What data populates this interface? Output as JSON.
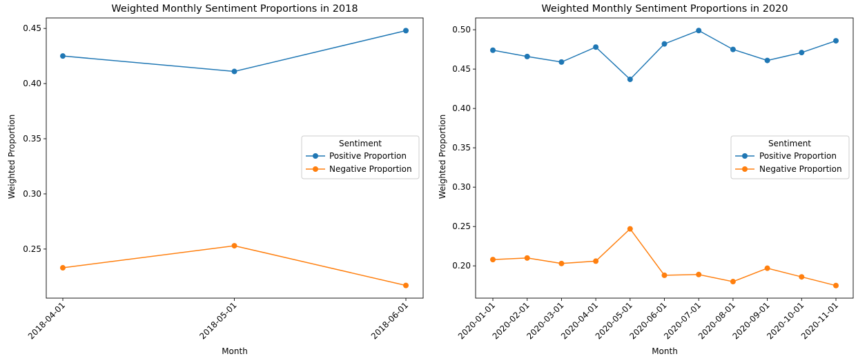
{
  "chart_data": [
    {
      "type": "line",
      "title": "Weighted Monthly Sentiment Proportions in 2018",
      "xlabel": "Month",
      "ylabel": "Weighted Proportion",
      "categories": [
        "2018-04-01",
        "2018-05-01",
        "2018-06-01"
      ],
      "yticks": [
        "0.25",
        "0.30",
        "0.35",
        "0.40",
        "0.45"
      ],
      "ylim": [
        0.2055,
        0.4595
      ],
      "grid": false,
      "legend": {
        "title": "Sentiment",
        "position": "center-right"
      },
      "series": [
        {
          "name": "Positive Proportion",
          "color": "#1f77b4",
          "values": [
            0.425,
            0.411,
            0.448
          ]
        },
        {
          "name": "Negative Proportion",
          "color": "#ff7f0e",
          "values": [
            0.233,
            0.253,
            0.217
          ]
        }
      ]
    },
    {
      "type": "line",
      "title": "Weighted Monthly Sentiment Proportions in 2020",
      "xlabel": "Month",
      "ylabel": "Weighted Proportion",
      "categories": [
        "2020-01-01",
        "2020-02-01",
        "2020-03-01",
        "2020-04-01",
        "2020-05-01",
        "2020-06-01",
        "2020-07-01",
        "2020-08-01",
        "2020-09-01",
        "2020-10-01",
        "2020-11-01"
      ],
      "yticks": [
        "0.20",
        "0.25",
        "0.30",
        "0.35",
        "0.40",
        "0.45",
        "0.50"
      ],
      "ylim": [
        0.159,
        0.515
      ],
      "grid": false,
      "legend": {
        "title": "Sentiment",
        "position": "center-right"
      },
      "series": [
        {
          "name": "Positive Proportion",
          "color": "#1f77b4",
          "values": [
            0.474,
            0.466,
            0.459,
            0.478,
            0.437,
            0.482,
            0.499,
            0.475,
            0.461,
            0.471,
            0.486
          ]
        },
        {
          "name": "Negative Proportion",
          "color": "#ff7f0e",
          "values": [
            0.208,
            0.21,
            0.203,
            0.206,
            0.247,
            0.188,
            0.189,
            0.18,
            0.197,
            0.186,
            0.175
          ]
        }
      ]
    }
  ]
}
